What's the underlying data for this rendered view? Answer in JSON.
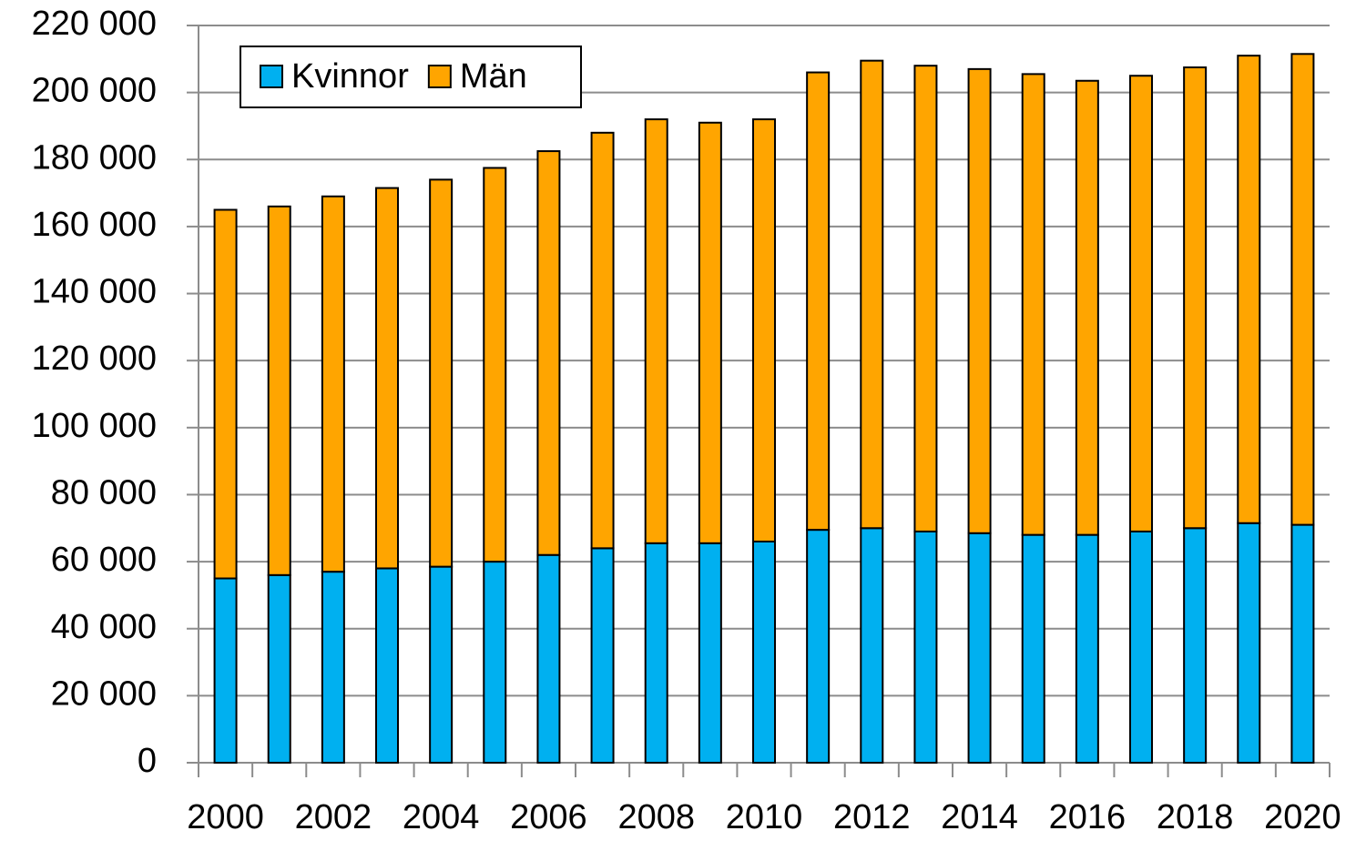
{
  "chart_data": {
    "type": "stacked_bar",
    "categories": [
      "2000",
      null,
      "2002",
      null,
      "2004",
      null,
      "2006",
      null,
      "2008",
      null,
      "2010",
      null,
      "2012",
      null,
      "2014",
      null,
      "2016",
      null,
      "2018",
      null,
      "2020"
    ],
    "series": [
      {
        "name": "Kvinnor",
        "color": "#00b0f0",
        "values": [
          55000,
          56000,
          57000,
          58000,
          58500,
          60000,
          62000,
          64000,
          65500,
          65500,
          66000,
          69500,
          70000,
          69000,
          68500,
          68000,
          68000,
          69000,
          70000,
          71500,
          71000
        ]
      },
      {
        "name": "Män",
        "color": "#ffa500",
        "values": [
          110000,
          110000,
          112000,
          113500,
          115500,
          117500,
          120500,
          124000,
          126500,
          125500,
          126000,
          136500,
          139500,
          139000,
          138500,
          137500,
          135500,
          136000,
          137500,
          139500,
          140500
        ]
      }
    ],
    "ylim": [
      0,
      220000
    ],
    "yticks": [
      0,
      {
        "value": 20000,
        "label": "20 000"
      },
      {
        "value": 40000,
        "label": "40 000"
      },
      {
        "value": 60000,
        "label": "60 000"
      },
      {
        "value": 80000,
        "label": "80 000"
      },
      {
        "value": 100000,
        "label": "100 000"
      },
      {
        "value": 120000,
        "label": "120 000"
      },
      {
        "value": 140000,
        "label": "140 000"
      },
      {
        "value": 160000,
        "label": "160 000"
      },
      {
        "value": 180000,
        "label": "180 000"
      },
      {
        "value": 200000,
        "label": "200 000"
      },
      {
        "value": 220000,
        "label": "220 000"
      }
    ],
    "grid": true,
    "legend": "top-left"
  }
}
